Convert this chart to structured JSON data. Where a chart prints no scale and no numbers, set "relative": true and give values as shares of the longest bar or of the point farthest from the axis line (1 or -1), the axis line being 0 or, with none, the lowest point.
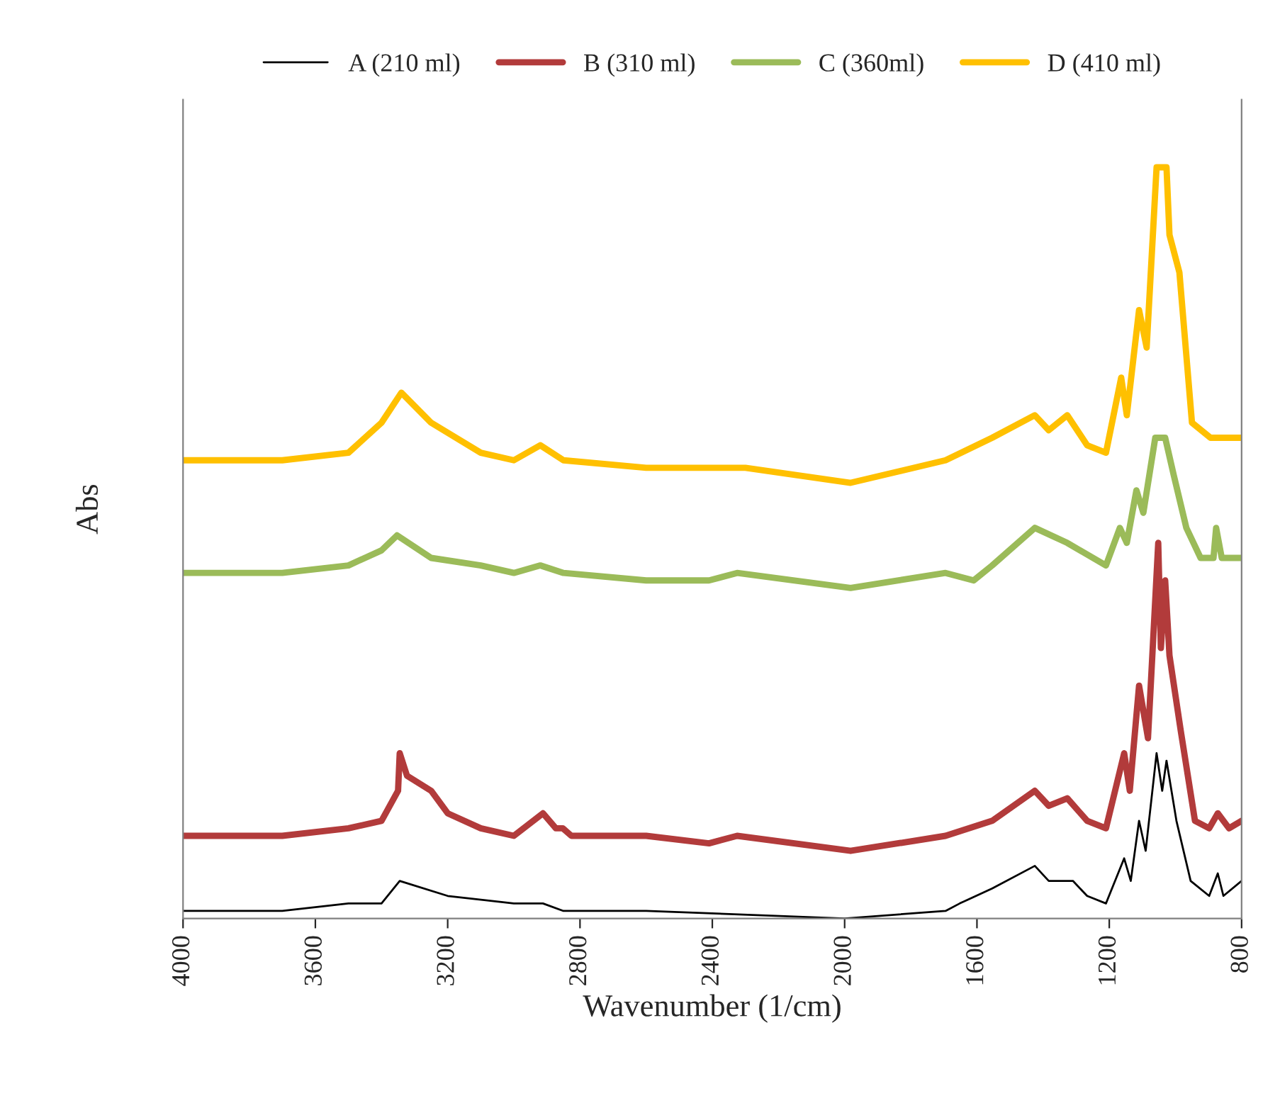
{
  "chart_data": {
    "type": "line",
    "xlabel": "Wavenumber (1/cm)",
    "ylabel": "Abs",
    "relative": true,
    "xlim": [
      4000,
      800
    ],
    "xticks": [
      4000,
      3600,
      3200,
      2800,
      2400,
      2000,
      1600,
      1200,
      800
    ],
    "legend": "top",
    "grid": false,
    "marker": "none",
    "line_style": "solid",
    "series": [
      {
        "name": "A (210 ml)",
        "color": "#000000",
        "x": [
          4000,
          3700,
          3500,
          3400,
          3345,
          3200,
          3000,
          2912,
          2850,
          2600,
          2000,
          1695,
          1652,
          1554,
          1425,
          1383,
          1310,
          1267,
          1210,
          1155,
          1135,
          1110,
          1090,
          1057,
          1040,
          1027,
          997,
          954,
          898,
          872,
          855,
          800
        ],
        "values": [
          0.01,
          0.01,
          0.02,
          0.02,
          0.05,
          0.03,
          0.02,
          0.02,
          0.01,
          0.01,
          0.0,
          0.01,
          0.02,
          0.04,
          0.07,
          0.05,
          0.05,
          0.03,
          0.02,
          0.08,
          0.05,
          0.13,
          0.09,
          0.22,
          0.17,
          0.21,
          0.13,
          0.05,
          0.03,
          0.06,
          0.03,
          0.05
        ]
      },
      {
        "name": "B (310 ml)",
        "color": "#b23b3b",
        "x": [
          4000,
          3700,
          3500,
          3400,
          3350,
          3345,
          3323,
          3250,
          3200,
          3100,
          3000,
          2912,
          2873,
          2852,
          2826,
          2600,
          2410,
          2325,
          1982,
          1695,
          1554,
          1425,
          1383,
          1327,
          1267,
          1210,
          1155,
          1138,
          1110,
          1083,
          1052,
          1044,
          1031,
          1018,
          984,
          941,
          898,
          872,
          838,
          800
        ],
        "values": [
          0.11,
          0.11,
          0.12,
          0.13,
          0.17,
          0.22,
          0.19,
          0.17,
          0.14,
          0.12,
          0.11,
          0.14,
          0.12,
          0.12,
          0.11,
          0.11,
          0.1,
          0.11,
          0.09,
          0.11,
          0.13,
          0.17,
          0.15,
          0.16,
          0.13,
          0.12,
          0.22,
          0.17,
          0.31,
          0.24,
          0.5,
          0.36,
          0.45,
          0.35,
          0.25,
          0.13,
          0.12,
          0.14,
          0.12,
          0.13
        ]
      },
      {
        "name": "C (360ml)",
        "color": "#9bbb59",
        "x": [
          4000,
          3700,
          3500,
          3400,
          3353,
          3250,
          3100,
          3000,
          2920,
          2850,
          2600,
          2410,
          2325,
          1982,
          1695,
          1610,
          1554,
          1425,
          1327,
          1210,
          1168,
          1147,
          1118,
          1097,
          1061,
          1031,
          1005,
          967,
          924,
          885,
          877,
          860,
          800
        ],
        "values": [
          0.46,
          0.46,
          0.47,
          0.49,
          0.51,
          0.48,
          0.47,
          0.46,
          0.47,
          0.46,
          0.45,
          0.45,
          0.46,
          0.44,
          0.46,
          0.45,
          0.47,
          0.52,
          0.5,
          0.47,
          0.52,
          0.5,
          0.57,
          0.54,
          0.64,
          0.64,
          0.59,
          0.52,
          0.48,
          0.48,
          0.52,
          0.48,
          0.48
        ]
      },
      {
        "name": "D (410 ml)",
        "color": "#ffc000",
        "x": [
          4000,
          3700,
          3500,
          3400,
          3340,
          3250,
          3100,
          3000,
          2920,
          2850,
          2600,
          2400,
          2300,
          1982,
          1695,
          1554,
          1425,
          1383,
          1327,
          1267,
          1210,
          1164,
          1147,
          1110,
          1087,
          1057,
          1027,
          1018,
          988,
          950,
          894,
          812,
          800
        ],
        "values": [
          0.61,
          0.61,
          0.62,
          0.66,
          0.7,
          0.66,
          0.62,
          0.61,
          0.63,
          0.61,
          0.6,
          0.6,
          0.6,
          0.58,
          0.61,
          0.64,
          0.67,
          0.65,
          0.67,
          0.63,
          0.62,
          0.72,
          0.67,
          0.81,
          0.76,
          1.0,
          1.0,
          0.91,
          0.86,
          0.66,
          0.64,
          0.64,
          0.64
        ]
      }
    ]
  }
}
